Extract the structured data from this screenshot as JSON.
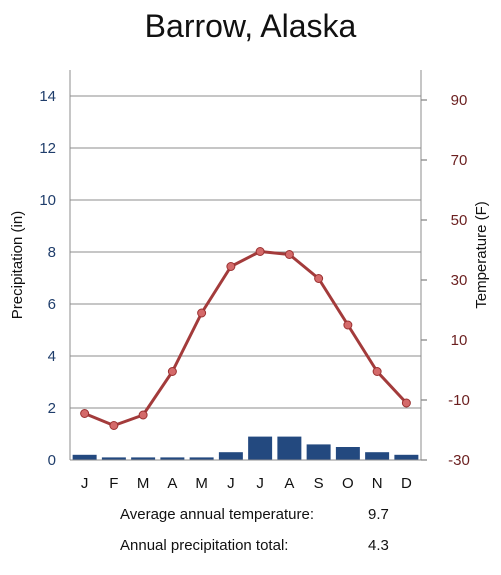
{
  "chart_data": {
    "type": "bar+line",
    "title": "Barrow, Alaska",
    "categories": [
      "J",
      "F",
      "M",
      "A",
      "M",
      "J",
      "J",
      "A",
      "S",
      "O",
      "N",
      "D"
    ],
    "y_left": {
      "label": "Precipitation (in)",
      "ticks": [
        "0",
        "2",
        "4",
        "6",
        "8",
        "10",
        "12",
        "14"
      ],
      "ylim": [
        0,
        15
      ],
      "color": "#1f3d6b"
    },
    "y_right": {
      "label": "Temperature (F)",
      "ticks": [
        "-30",
        "-10",
        "10",
        "30",
        "50",
        "70",
        "90"
      ],
      "ylim": [
        -30,
        100
      ],
      "color": "#6b1f1f"
    },
    "series": [
      {
        "type": "bar",
        "axis": "left",
        "color": "#23497f",
        "values": [
          0.2,
          0.1,
          0.1,
          0.1,
          0.1,
          0.3,
          0.9,
          0.9,
          0.6,
          0.5,
          0.3,
          0.2
        ]
      },
      {
        "type": "line",
        "axis": "right",
        "color": "#a33b3b",
        "values": [
          -14.5,
          -18.5,
          -15,
          -0.5,
          19,
          34.5,
          39.5,
          38.5,
          30.5,
          15,
          -0.5,
          -11
        ]
      }
    ],
    "grid": "horizontal"
  },
  "footer": {
    "avg_temp_label": "Average annual temperature:",
    "avg_temp_value": "9.7",
    "precip_label": "Annual precipitation total:",
    "precip_value": "4.3"
  }
}
